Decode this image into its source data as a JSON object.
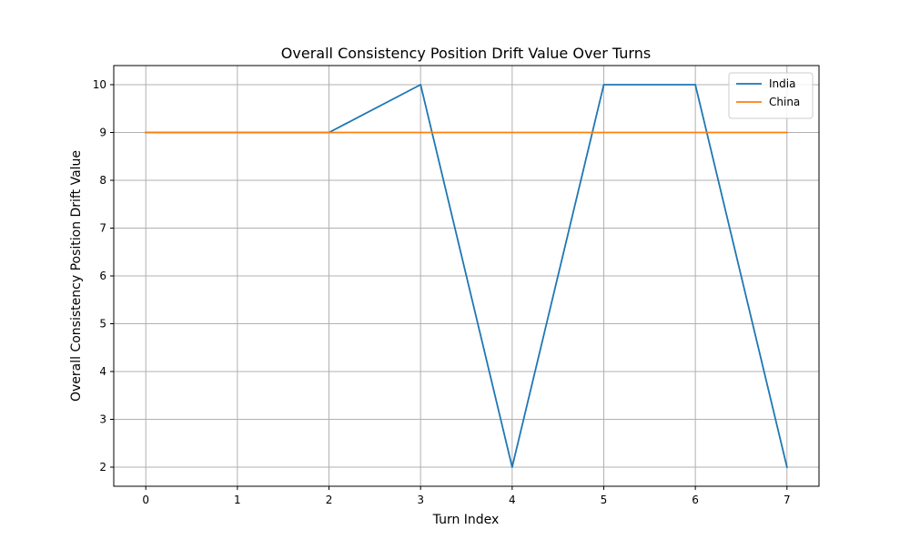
{
  "chart_data": {
    "type": "line",
    "title": "Overall Consistency Position Drift Value Over Turns",
    "xlabel": "Turn Index",
    "ylabel": "Overall Consistency Position Drift Value",
    "x": [
      0,
      1,
      2,
      3,
      4,
      5,
      6,
      7
    ],
    "xticks": [
      "0",
      "1",
      "2",
      "3",
      "4",
      "5",
      "6",
      "7"
    ],
    "yticks": [
      "2",
      "3",
      "4",
      "5",
      "6",
      "7",
      "8",
      "9",
      "10"
    ],
    "xlim": [
      -0.35,
      7.35
    ],
    "ylim": [
      1.6,
      10.4
    ],
    "grid": true,
    "legend_position": "top-right",
    "series": [
      {
        "name": "India",
        "color": "#1f77b4",
        "values": [
          9,
          9,
          9,
          10,
          2,
          10,
          10,
          2
        ]
      },
      {
        "name": "China",
        "color": "#ff7f0e",
        "values": [
          9,
          9,
          9,
          9,
          9,
          9,
          9,
          9
        ]
      }
    ]
  }
}
